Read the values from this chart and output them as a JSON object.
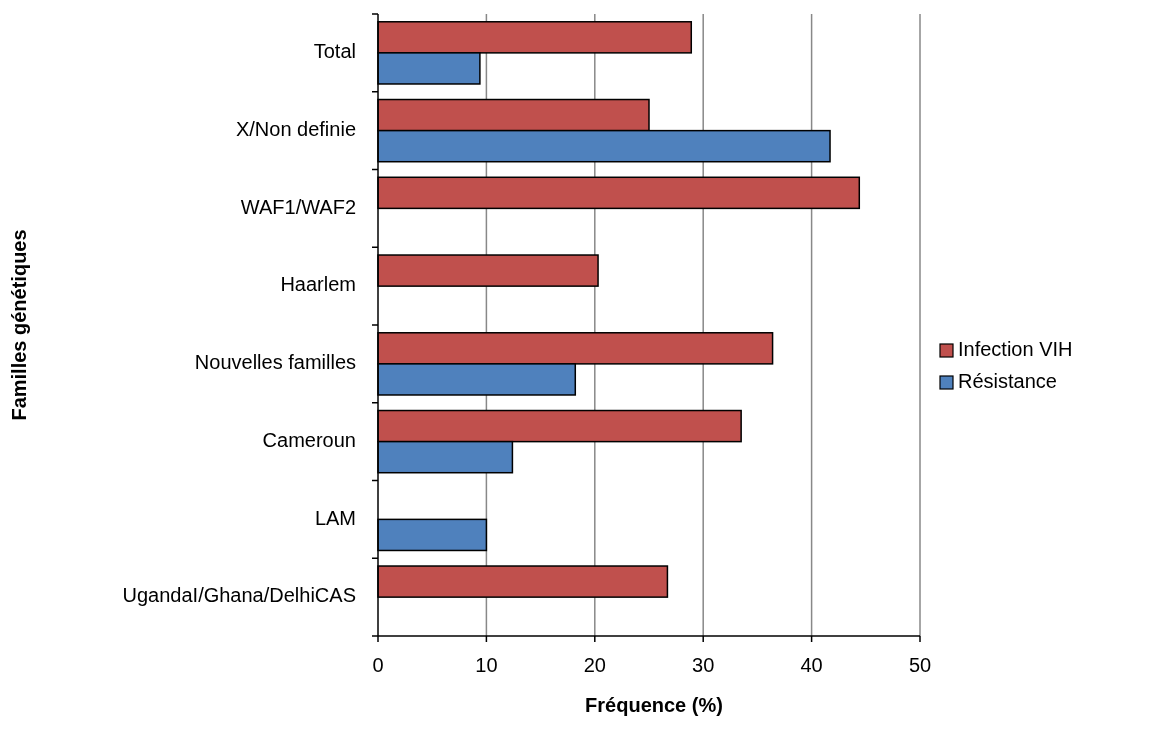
{
  "chart_data": {
    "type": "bar",
    "orientation": "horizontal",
    "xlabel": "Fréquence (%)",
    "ylabel": "Familles génétiques",
    "categories": [
      "Total",
      "X/Non definie",
      "WAF1/WAF2",
      "Haarlem",
      "Nouvelles familles",
      "Cameroun",
      "LAM",
      "UgandaI/Ghana/DelhiCAS"
    ],
    "series": [
      {
        "name": "Infection VIH",
        "color": "#c0504d",
        "values": [
          28.9,
          25.0,
          44.4,
          20.3,
          36.4,
          33.5,
          null,
          26.7
        ]
      },
      {
        "name": "Résistance",
        "color": "#4f81bd",
        "values": [
          9.4,
          41.7,
          null,
          null,
          18.2,
          12.4,
          10.0,
          null
        ]
      }
    ],
    "xlim": [
      0,
      50
    ],
    "xticks": [
      0,
      10,
      20,
      30,
      40,
      50
    ],
    "grid": "x",
    "legend": "right"
  }
}
